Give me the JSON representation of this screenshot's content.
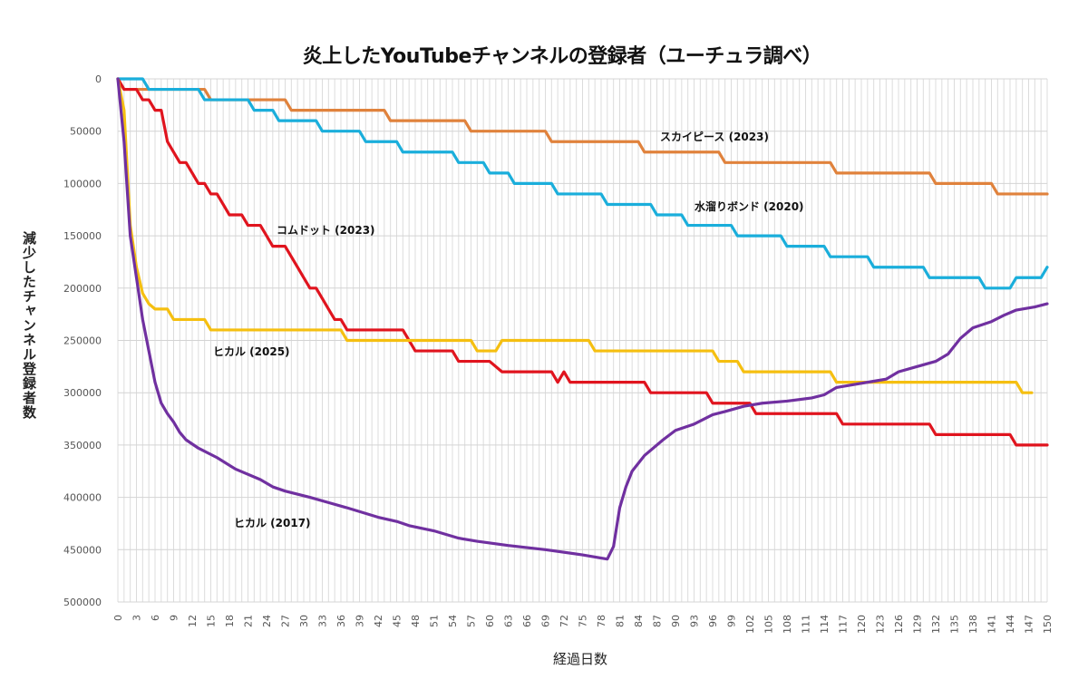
{
  "chart_data": {
    "type": "line",
    "title": "炎上したYouTubeチャンネルの登録者（ユーチュラ調べ）",
    "xlabel": "経過日数",
    "ylabel": "減少したチャンネル登録者数",
    "xlim": [
      0,
      150
    ],
    "x_tick_step": 3,
    "ylim": [
      0,
      500000
    ],
    "y_inverted": true,
    "y_ticks": [
      0,
      50000,
      100000,
      150000,
      200000,
      250000,
      300000,
      350000,
      400000,
      450000,
      500000
    ],
    "grid": true,
    "legend": "inline-labels",
    "series": [
      {
        "name": "スカイピース (2023)",
        "color": "#E0823C",
        "points": [
          [
            0,
            0
          ],
          [
            1,
            10000
          ],
          [
            14,
            10000
          ],
          [
            15,
            20000
          ],
          [
            27,
            20000
          ],
          [
            28,
            30000
          ],
          [
            43,
            30000
          ],
          [
            44,
            40000
          ],
          [
            56,
            40000
          ],
          [
            57,
            50000
          ],
          [
            69,
            50000
          ],
          [
            70,
            60000
          ],
          [
            84,
            60000
          ],
          [
            85,
            70000
          ],
          [
            97,
            70000
          ],
          [
            98,
            80000
          ],
          [
            115,
            80000
          ],
          [
            116,
            90000
          ],
          [
            131,
            90000
          ],
          [
            132,
            100000
          ],
          [
            141,
            100000
          ],
          [
            142,
            110000
          ],
          [
            150,
            110000
          ]
        ]
      },
      {
        "name": "水溜りボンド (2020)",
        "color": "#1AAEDB",
        "points": [
          [
            0,
            0
          ],
          [
            4,
            0
          ],
          [
            5,
            10000
          ],
          [
            13,
            10000
          ],
          [
            14,
            20000
          ],
          [
            21,
            20000
          ],
          [
            22,
            30000
          ],
          [
            25,
            30000
          ],
          [
            26,
            40000
          ],
          [
            32,
            40000
          ],
          [
            33,
            50000
          ],
          [
            39,
            50000
          ],
          [
            40,
            60000
          ],
          [
            45,
            60000
          ],
          [
            46,
            70000
          ],
          [
            54,
            70000
          ],
          [
            55,
            80000
          ],
          [
            59,
            80000
          ],
          [
            60,
            90000
          ],
          [
            63,
            90000
          ],
          [
            64,
            100000
          ],
          [
            70,
            100000
          ],
          [
            71,
            110000
          ],
          [
            78,
            110000
          ],
          [
            79,
            120000
          ],
          [
            86,
            120000
          ],
          [
            87,
            130000
          ],
          [
            91,
            130000
          ],
          [
            92,
            140000
          ],
          [
            99,
            140000
          ],
          [
            100,
            150000
          ],
          [
            107,
            150000
          ],
          [
            108,
            160000
          ],
          [
            114,
            160000
          ],
          [
            115,
            170000
          ],
          [
            121,
            170000
          ],
          [
            122,
            180000
          ],
          [
            130,
            180000
          ],
          [
            131,
            190000
          ],
          [
            139,
            190000
          ],
          [
            140,
            200000
          ],
          [
            144,
            200000
          ],
          [
            145,
            190000
          ],
          [
            149,
            190000
          ],
          [
            150,
            180000
          ]
        ]
      },
      {
        "name": "コムドット (2023)",
        "color": "#E0141E",
        "points": [
          [
            0,
            0
          ],
          [
            1,
            10000
          ],
          [
            3,
            10000
          ],
          [
            4,
            20000
          ],
          [
            5,
            20000
          ],
          [
            6,
            30000
          ],
          [
            7,
            30000
          ],
          [
            8,
            60000
          ],
          [
            9,
            70000
          ],
          [
            10,
            80000
          ],
          [
            11,
            80000
          ],
          [
            12,
            90000
          ],
          [
            13,
            100000
          ],
          [
            14,
            100000
          ],
          [
            15,
            110000
          ],
          [
            16,
            110000
          ],
          [
            17,
            120000
          ],
          [
            18,
            130000
          ],
          [
            20,
            130000
          ],
          [
            21,
            140000
          ],
          [
            23,
            140000
          ],
          [
            24,
            150000
          ],
          [
            25,
            160000
          ],
          [
            27,
            160000
          ],
          [
            28,
            170000
          ],
          [
            29,
            180000
          ],
          [
            30,
            190000
          ],
          [
            31,
            200000
          ],
          [
            32,
            200000
          ],
          [
            33,
            210000
          ],
          [
            34,
            220000
          ],
          [
            35,
            230000
          ],
          [
            36,
            230000
          ],
          [
            37,
            240000
          ],
          [
            46,
            240000
          ],
          [
            47,
            250000
          ],
          [
            48,
            260000
          ],
          [
            54,
            260000
          ],
          [
            55,
            270000
          ],
          [
            60,
            270000
          ],
          [
            62,
            280000
          ],
          [
            70,
            280000
          ],
          [
            71,
            290000
          ],
          [
            72,
            280000
          ],
          [
            73,
            290000
          ],
          [
            85,
            290000
          ],
          [
            86,
            300000
          ],
          [
            95,
            300000
          ],
          [
            96,
            310000
          ],
          [
            102,
            310000
          ],
          [
            103,
            320000
          ],
          [
            116,
            320000
          ],
          [
            117,
            330000
          ],
          [
            131,
            330000
          ],
          [
            132,
            340000
          ],
          [
            144,
            340000
          ],
          [
            145,
            350000
          ],
          [
            150,
            350000
          ]
        ]
      },
      {
        "name": "ヒカル (2025)",
        "color": "#F5BF10",
        "points": [
          [
            0,
            0
          ],
          [
            1,
            30000
          ],
          [
            2,
            140000
          ],
          [
            3,
            180000
          ],
          [
            4,
            205000
          ],
          [
            5,
            215000
          ],
          [
            6,
            220000
          ],
          [
            8,
            220000
          ],
          [
            9,
            230000
          ],
          [
            14,
            230000
          ],
          [
            15,
            240000
          ],
          [
            36,
            240000
          ],
          [
            37,
            250000
          ],
          [
            57,
            250000
          ],
          [
            58,
            260000
          ],
          [
            61,
            260000
          ],
          [
            62,
            250000
          ],
          [
            76,
            250000
          ],
          [
            77,
            260000
          ],
          [
            96,
            260000
          ],
          [
            97,
            270000
          ],
          [
            100,
            270000
          ],
          [
            101,
            280000
          ],
          [
            115,
            280000
          ],
          [
            116,
            290000
          ],
          [
            145,
            290000
          ],
          [
            146,
            300000
          ],
          [
            147.5,
            300000
          ]
        ]
      },
      {
        "name": "ヒカル (2017)",
        "color": "#7030A0",
        "points": [
          [
            0,
            0
          ],
          [
            1,
            60000
          ],
          [
            2,
            150000
          ],
          [
            3,
            190000
          ],
          [
            4,
            230000
          ],
          [
            5,
            260000
          ],
          [
            6,
            290000
          ],
          [
            7,
            310000
          ],
          [
            8,
            320000
          ],
          [
            9,
            328000
          ],
          [
            10,
            338000
          ],
          [
            11,
            345000
          ],
          [
            13,
            353000
          ],
          [
            16,
            362000
          ],
          [
            19,
            373000
          ],
          [
            23,
            383000
          ],
          [
            25,
            390000
          ],
          [
            27,
            394000
          ],
          [
            31,
            400000
          ],
          [
            34,
            405000
          ],
          [
            37,
            410000
          ],
          [
            42,
            419000
          ],
          [
            45,
            423000
          ],
          [
            47,
            427000
          ],
          [
            51,
            432000
          ],
          [
            55,
            439000
          ],
          [
            58,
            442000
          ],
          [
            63,
            446000
          ],
          [
            69,
            450000
          ],
          [
            75,
            455000
          ],
          [
            78,
            458000
          ],
          [
            79,
            459000
          ],
          [
            80,
            447000
          ],
          [
            81,
            410000
          ],
          [
            82,
            390000
          ],
          [
            83,
            375000
          ],
          [
            85,
            360000
          ],
          [
            88,
            345000
          ],
          [
            90,
            336000
          ],
          [
            93,
            330000
          ],
          [
            96,
            321000
          ],
          [
            98,
            318000
          ],
          [
            101,
            313000
          ],
          [
            104,
            310000
          ],
          [
            108,
            308000
          ],
          [
            112,
            305000
          ],
          [
            114,
            302000
          ],
          [
            116,
            295000
          ],
          [
            119,
            292000
          ],
          [
            122,
            289000
          ],
          [
            124,
            287000
          ],
          [
            126,
            280000
          ],
          [
            129,
            275000
          ],
          [
            132,
            270000
          ],
          [
            134,
            263000
          ],
          [
            136,
            248000
          ],
          [
            138,
            238000
          ],
          [
            141,
            232000
          ],
          [
            143,
            226000
          ],
          [
            145,
            221000
          ],
          [
            148,
            218000
          ],
          [
            150,
            215000
          ]
        ]
      }
    ]
  }
}
